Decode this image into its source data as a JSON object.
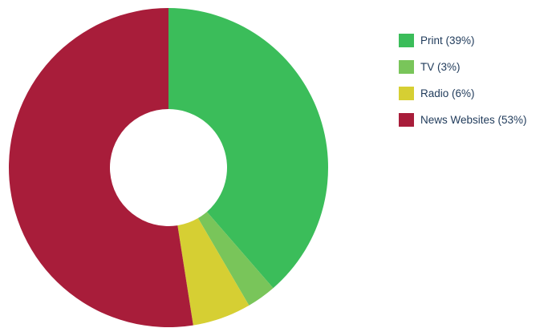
{
  "chart_data": {
    "type": "pie",
    "variant": "donut",
    "title": "",
    "slices": [
      {
        "label": "Print (39%)",
        "name": "Print",
        "value": 39,
        "color": "#3bbd5a"
      },
      {
        "label": "TV (3%)",
        "name": "TV",
        "value": 3,
        "color": "#79c55a"
      },
      {
        "label": "Radio (6%)",
        "name": "Radio",
        "value": 6,
        "color": "#d6cf33"
      },
      {
        "label": "News Websites (53%)",
        "name": "News Websites",
        "value": 53,
        "color": "#a81d3a"
      }
    ],
    "start_angle_deg": 0,
    "direction": "clockwise",
    "legend": {
      "position": "right"
    }
  }
}
